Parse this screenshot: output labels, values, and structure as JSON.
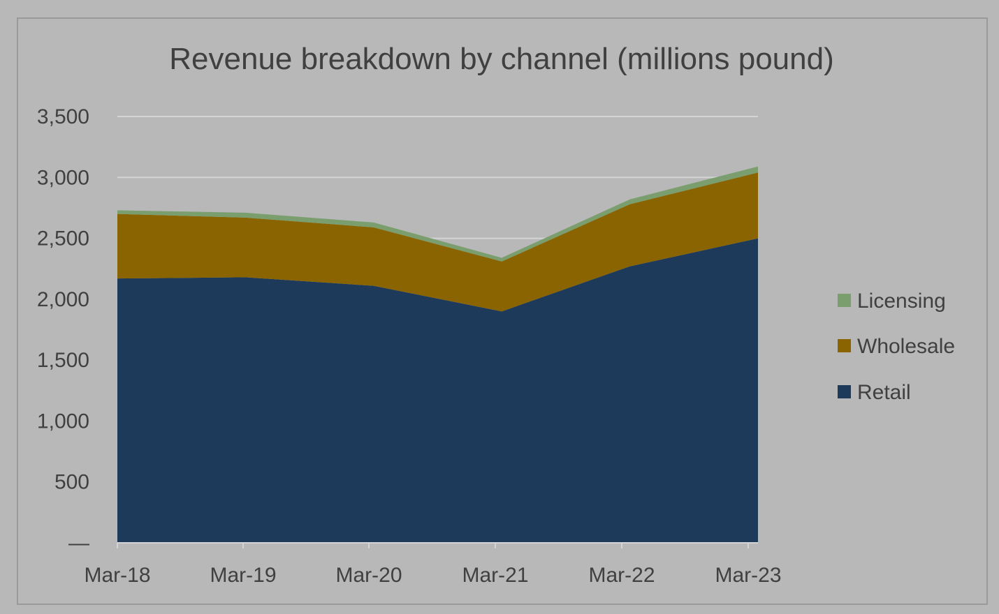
{
  "chart_data": {
    "type": "area",
    "stacked": true,
    "title": "Revenue breakdown by channel (millions pound)",
    "xlabel": "",
    "ylabel": "",
    "categories": [
      "Mar-18",
      "Mar-19",
      "Mar-20",
      "Mar-21",
      "Mar-22",
      "Mar-23"
    ],
    "series": [
      {
        "name": "Retail",
        "color": "#1d3a5a",
        "values": [
          2170,
          2180,
          2110,
          1900,
          2270,
          2500
        ]
      },
      {
        "name": "Wholesale",
        "color": "#8a6400",
        "values": [
          530,
          490,
          480,
          410,
          510,
          540
        ]
      },
      {
        "name": "Licensing",
        "color": "#7a9e6e",
        "values": [
          30,
          40,
          40,
          30,
          40,
          50
        ]
      }
    ],
    "ylim": [
      0,
      3500
    ],
    "yticks": [
      0,
      500,
      1000,
      1500,
      2000,
      2500,
      3000,
      3500
    ],
    "ytick_labels": [
      "—",
      "500",
      "1,000",
      "1,500",
      "2,000",
      "2,500",
      "3,000",
      "3,500"
    ],
    "grid": true,
    "legend_position": "right",
    "legend_order": [
      "Licensing",
      "Wholesale",
      "Retail"
    ],
    "background": "#b8b8b8",
    "gridline_color": "#d4d4d4"
  }
}
